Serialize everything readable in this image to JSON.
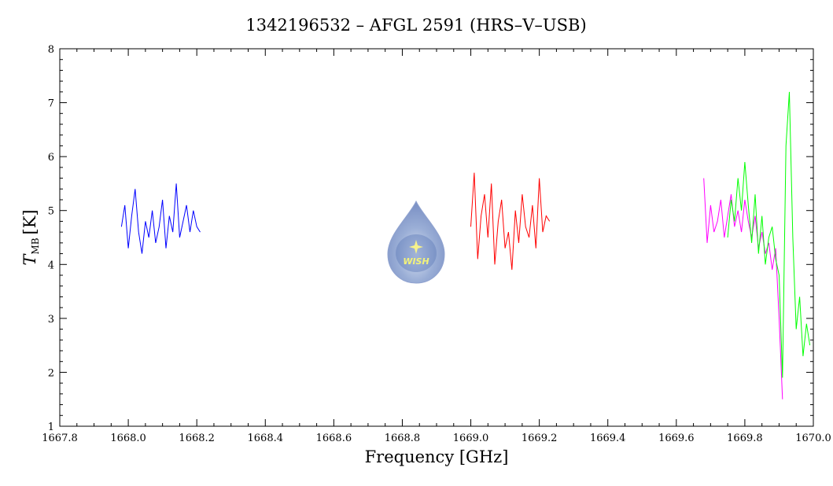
{
  "chart_data": {
    "type": "line",
    "title": "1342196532 – AFGL 2591 (HRS–V–USB)",
    "xlabel": "Frequency [GHz]",
    "ylabel_main": "T",
    "ylabel_sub": "MB",
    "ylabel_unit": "[K]",
    "xlim": [
      1667.8,
      1670.0
    ],
    "ylim": [
      1,
      8
    ],
    "x_ticks": [
      "1667.8",
      "1668.0",
      "1668.2",
      "1668.4",
      "1668.6",
      "1668.8",
      "1669.0",
      "1669.2",
      "1669.4",
      "1669.6",
      "1669.8",
      "1670.0"
    ],
    "x_tick_values": [
      1667.8,
      1668.0,
      1668.2,
      1668.4,
      1668.6,
      1668.8,
      1669.0,
      1669.2,
      1669.4,
      1669.6,
      1669.8,
      1670.0
    ],
    "y_ticks": [
      "1",
      "2",
      "3",
      "4",
      "5",
      "6",
      "7",
      "8"
    ],
    "y_tick_values": [
      1,
      2,
      3,
      4,
      5,
      6,
      7,
      8
    ],
    "grid": false,
    "logo_text": "WISH",
    "series": [
      {
        "color": "#0000ff",
        "x": [
          1667.98,
          1667.99,
          1668.0,
          1668.01,
          1668.02,
          1668.03,
          1668.04,
          1668.05,
          1668.06,
          1668.07,
          1668.08,
          1668.09,
          1668.1,
          1668.11,
          1668.12,
          1668.13,
          1668.14,
          1668.15,
          1668.16,
          1668.17,
          1668.18,
          1668.19,
          1668.2,
          1668.21
        ],
        "y": [
          4.7,
          5.1,
          4.3,
          4.9,
          5.4,
          4.6,
          4.2,
          4.8,
          4.5,
          5.0,
          4.4,
          4.7,
          5.2,
          4.3,
          4.9,
          4.6,
          5.5,
          4.5,
          4.8,
          5.1,
          4.6,
          5.0,
          4.7,
          4.6
        ]
      },
      {
        "color": "#ff0000",
        "x": [
          1669.0,
          1669.01,
          1669.02,
          1669.03,
          1669.04,
          1669.05,
          1669.06,
          1669.07,
          1669.08,
          1669.09,
          1669.1,
          1669.11,
          1669.12,
          1669.13,
          1669.14,
          1669.15,
          1669.16,
          1669.17,
          1669.18,
          1669.19,
          1669.2,
          1669.21,
          1669.22,
          1669.23
        ],
        "y": [
          4.7,
          5.7,
          4.1,
          4.9,
          5.3,
          4.5,
          5.5,
          4.0,
          4.8,
          5.2,
          4.3,
          4.6,
          3.9,
          5.0,
          4.4,
          5.3,
          4.7,
          4.5,
          5.1,
          4.3,
          5.6,
          4.6,
          4.9,
          4.8
        ]
      },
      {
        "color": "#ff00ff",
        "x": [
          1669.68,
          1669.69,
          1669.7,
          1669.71,
          1669.72,
          1669.73,
          1669.74,
          1669.75,
          1669.76,
          1669.77,
          1669.78,
          1669.79,
          1669.8,
          1669.81,
          1669.82,
          1669.83,
          1669.84,
          1669.85,
          1669.86,
          1669.87,
          1669.88,
          1669.89,
          1669.9,
          1669.91
        ],
        "y": [
          5.6,
          4.4,
          5.1,
          4.6,
          4.8,
          5.2,
          4.5,
          4.9,
          5.3,
          4.7,
          5.0,
          4.6,
          5.2,
          4.8,
          4.5,
          4.9,
          4.3,
          4.6,
          4.2,
          4.4,
          3.9,
          4.3,
          3.0,
          1.5
        ]
      },
      {
        "color": "#00ff00",
        "x": [
          1669.75,
          1669.76,
          1669.77,
          1669.78,
          1669.79,
          1669.8,
          1669.81,
          1669.82,
          1669.83,
          1669.84,
          1669.85,
          1669.86,
          1669.87,
          1669.88,
          1669.89,
          1669.9,
          1669.91,
          1669.92,
          1669.93,
          1669.94,
          1669.95,
          1669.96,
          1669.97,
          1669.98,
          1669.99
        ],
        "y": [
          4.5,
          5.2,
          4.8,
          5.6,
          5.0,
          5.9,
          5.1,
          4.4,
          5.3,
          4.2,
          4.9,
          4.0,
          4.5,
          4.7,
          4.1,
          3.8,
          1.9,
          6.2,
          7.2,
          4.5,
          2.8,
          3.4,
          2.3,
          2.9,
          2.5
        ]
      }
    ]
  }
}
